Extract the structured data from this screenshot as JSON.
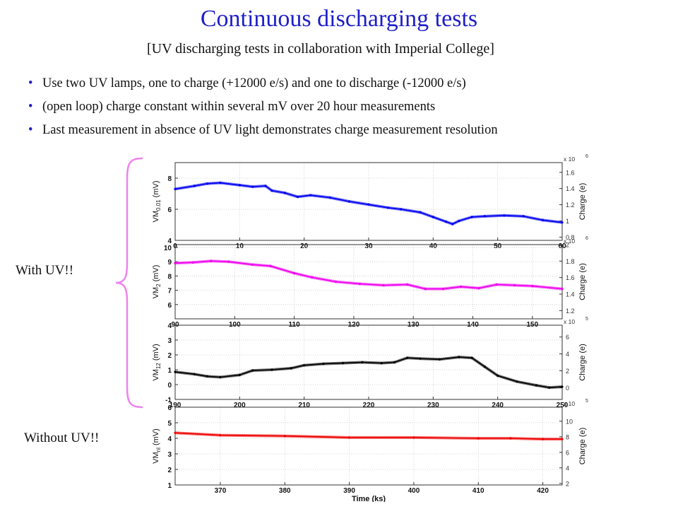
{
  "slide": {
    "title": "Continuous discharging tests",
    "subtitle": "[UV discharging tests in collaboration with Imperial College]",
    "bullets": [
      "Use two UV lamps, one to charge (+12000 e/s) and one to discharge (-12000 e/s)",
      "(open loop) charge constant within several mV over 20 hour measurements",
      "Last measurement in absence of UV light demonstrates charge measurement resolution"
    ],
    "with_uv_label": "With UV!!",
    "without_uv_label": "Without UV!!",
    "brace_color": "#ee82ee"
  },
  "chart_data": [
    {
      "type": "line",
      "ylabel": "VM0.01 (mV)",
      "ylabel_main": "VM",
      "ylabel_sub": "0.01",
      "ylabel_unit": " (mV)",
      "y2label": "Charge (e)",
      "y2_multiplier": "x 10",
      "y2_exponent": "6",
      "color": "#0000ee",
      "xlim": [
        0,
        60
      ],
      "ylim": [
        4,
        9
      ],
      "xticks": [
        0,
        10,
        20,
        30,
        40,
        50,
        60
      ],
      "yticks": [
        4,
        6,
        8
      ],
      "y2lim": [
        0.76,
        1.72
      ],
      "y2ticks": [
        0.8,
        1,
        1.2,
        1.4,
        1.6
      ],
      "y2ticklabels": [
        "0.8",
        "1",
        "1.2",
        "1.4",
        "1.6"
      ],
      "grid": true,
      "x": [
        0,
        3,
        5,
        7,
        10,
        12,
        14,
        15,
        17,
        19,
        21,
        24,
        27,
        30,
        33,
        35,
        38,
        40,
        42,
        43,
        44,
        46,
        48,
        51,
        54,
        57,
        60
      ],
      "y": [
        7.3,
        7.5,
        7.65,
        7.7,
        7.55,
        7.45,
        7.5,
        7.2,
        7.05,
        6.8,
        6.9,
        6.75,
        6.5,
        6.3,
        6.1,
        6.0,
        5.8,
        5.5,
        5.2,
        5.05,
        5.25,
        5.5,
        5.55,
        5.6,
        5.55,
        5.3,
        5.15
      ]
    },
    {
      "type": "line",
      "ylabel": "VM2 (mV)",
      "ylabel_main": "VM",
      "ylabel_sub": "2",
      "ylabel_unit": " (mV)",
      "y2label": "Charge (e)",
      "y2_multiplier": "x 10",
      "y2_exponent": "6",
      "color": "#ee00ee",
      "xlim": [
        90,
        155
      ],
      "ylim": [
        5,
        10.2
      ],
      "xticks": [
        90,
        100,
        110,
        120,
        130,
        140,
        150
      ],
      "yticks": [
        6,
        7,
        8,
        9,
        10
      ],
      "y2lim": [
        1.1,
        2.0
      ],
      "y2ticks": [
        1.2,
        1.4,
        1.6,
        1.8,
        2
      ],
      "y2ticklabels": [
        "1.2",
        "1.4",
        "1.6",
        "1.8",
        "2"
      ],
      "grid": true,
      "x": [
        90,
        93,
        96,
        99,
        103,
        106,
        110,
        113,
        117,
        121,
        125,
        129,
        132,
        135,
        138,
        141,
        144,
        147,
        150,
        155
      ],
      "y": [
        8.9,
        8.95,
        9.05,
        9.0,
        8.8,
        8.7,
        8.2,
        7.9,
        7.6,
        7.45,
        7.35,
        7.4,
        7.1,
        7.1,
        7.25,
        7.15,
        7.4,
        7.35,
        7.3,
        7.1
      ]
    },
    {
      "type": "line",
      "ylabel": "VM12 (mV)",
      "ylabel_main": "VM",
      "ylabel_sub": "12",
      "ylabel_unit": " (mV)",
      "y2label": "Charge (e)",
      "y2_multiplier": "x 10",
      "y2_exponent": "5",
      "color": "#000000",
      "xlim": [
        190,
        250
      ],
      "ylim": [
        -1,
        4
      ],
      "xticks": [
        190,
        200,
        210,
        220,
        230,
        240,
        250
      ],
      "yticks": [
        -1,
        0,
        1,
        2,
        3,
        4
      ],
      "y2lim": [
        -1.4,
        7.4
      ],
      "y2ticks": [
        0,
        2,
        4,
        6
      ],
      "y2ticklabels": [
        "0",
        "2",
        "4",
        "6"
      ],
      "grid": true,
      "x": [
        190,
        193,
        195,
        197,
        200,
        202,
        205,
        208,
        210,
        213,
        216,
        219,
        222,
        224,
        226,
        228,
        231,
        234,
        236,
        238,
        240,
        243,
        246,
        248,
        250
      ],
      "y": [
        0.85,
        0.7,
        0.55,
        0.5,
        0.65,
        0.95,
        1.0,
        1.1,
        1.3,
        1.4,
        1.45,
        1.5,
        1.45,
        1.5,
        1.8,
        1.75,
        1.7,
        1.85,
        1.8,
        1.2,
        0.6,
        0.2,
        -0.05,
        -0.2,
        -0.15
      ]
    },
    {
      "type": "line",
      "ylabel": "VMnl (mV)",
      "ylabel_main": "VM",
      "ylabel_sub": "nl",
      "ylabel_unit": " (mV)",
      "y2label": "Charge (e)",
      "y2_multiplier": "x 10",
      "y2_exponent": "5",
      "color": "#ee0000",
      "xlabel": "Time (ks)",
      "xlim": [
        363,
        423
      ],
      "ylim": [
        1,
        6
      ],
      "xticks": [
        370,
        380,
        390,
        400,
        410,
        420
      ],
      "yticks": [
        1,
        2,
        3,
        4,
        5,
        6
      ],
      "y2lim": [
        1.8,
        11.8
      ],
      "y2ticks": [
        2,
        4,
        6,
        8,
        10
      ],
      "y2ticklabels": [
        "2",
        "4",
        "6",
        "8",
        "10"
      ],
      "grid": true,
      "x": [
        363,
        370,
        380,
        390,
        400,
        410,
        415,
        420,
        423
      ],
      "y": [
        4.35,
        4.2,
        4.15,
        4.05,
        4.05,
        4.0,
        4.0,
        3.95,
        3.95
      ]
    }
  ]
}
